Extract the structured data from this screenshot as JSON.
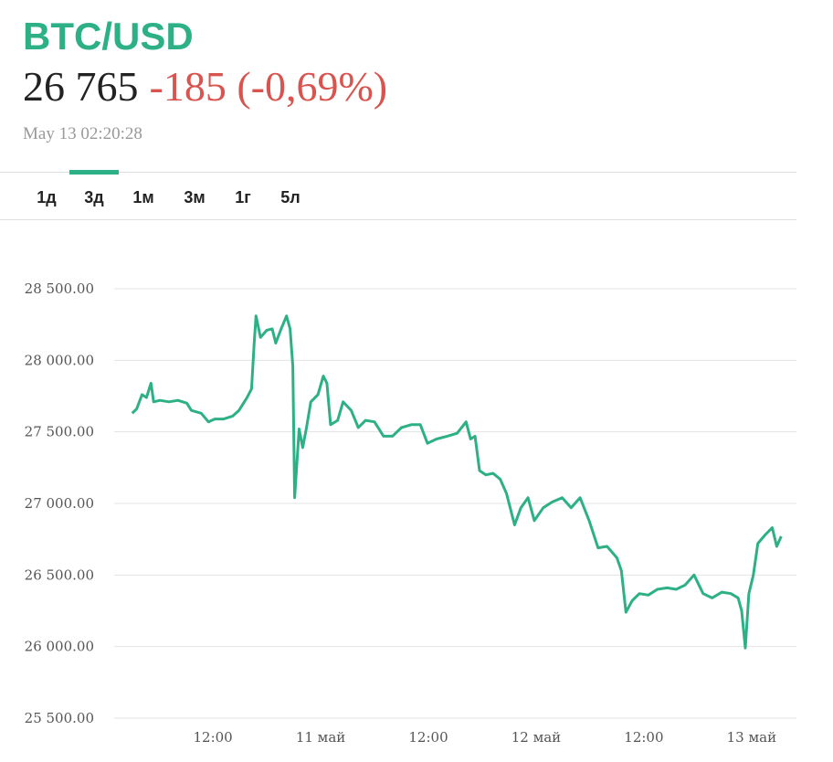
{
  "header": {
    "title": "BTC/USD",
    "price": "26 765",
    "change": "-185 (-0,69%)",
    "timestamp": "May 13 02:20:28"
  },
  "tabs": {
    "items": [
      "1д",
      "3д",
      "1м",
      "3м",
      "1г",
      "5л"
    ],
    "active": 1
  },
  "chart_data": {
    "type": "line",
    "color": "#2eb086",
    "grid": true,
    "x": [
      3.0,
      3.5,
      4.1,
      4.6,
      5.1,
      5.4,
      6.1,
      7.1,
      8.1,
      9.1,
      9.6,
      10.7,
      11.5,
      12.2,
      13.2,
      14.2,
      14.9,
      15.8,
      16.3,
      16.6,
      16.8,
      17.3,
      18.0,
      18.6,
      19.0,
      19.6,
      20.2,
      20.6,
      20.9,
      21.1,
      21.6,
      22.0,
      22.4,
      22.9,
      23.7,
      24.3,
      24.7,
      25.1,
      25.9,
      26.5,
      27.4,
      28.2,
      29.0,
      30.0,
      31.0,
      32.0,
      33.0,
      34.1,
      35.1,
      35.9,
      36.9,
      38.1,
      39.2,
      40.2,
      40.7,
      41.2,
      41.7,
      42.4,
      43.2,
      44.0,
      44.7,
      45.6,
      46.3,
      47.1,
      47.8,
      48.8,
      49.8,
      50.9,
      51.9,
      52.9,
      53.9,
      54.9,
      55.9,
      57.0,
      57.5,
      58.0,
      58.7,
      59.5,
      60.5,
      61.5,
      62.6,
      63.6,
      64.6,
      65.6,
      66.6,
      67.6,
      68.7,
      69.7,
      70.5,
      70.9,
      71.3,
      71.7,
      72.2,
      72.7,
      73.5,
      74.3,
      74.8,
      75.3
    ],
    "values": [
      27630,
      27660,
      27760,
      27740,
      27840,
      27710,
      27720,
      27710,
      27720,
      27700,
      27650,
      27630,
      27570,
      27590,
      27590,
      27610,
      27650,
      27740,
      27800,
      28120,
      28310,
      28160,
      28210,
      28220,
      28120,
      28220,
      28310,
      28220,
      27960,
      27040,
      27520,
      27390,
      27520,
      27710,
      27760,
      27890,
      27840,
      27550,
      27580,
      27710,
      27650,
      27530,
      27580,
      27570,
      27470,
      27470,
      27530,
      27550,
      27550,
      27420,
      27450,
      27470,
      27490,
      27570,
      27450,
      27470,
      27230,
      27200,
      27210,
      27170,
      27070,
      26850,
      26970,
      27040,
      26880,
      26970,
      27010,
      27040,
      26970,
      27040,
      26880,
      26690,
      26700,
      26620,
      26530,
      26240,
      26320,
      26370,
      26360,
      26400,
      26410,
      26400,
      26430,
      26500,
      26370,
      26340,
      26380,
      26370,
      26340,
      26250,
      25990,
      26370,
      26500,
      26720,
      26780,
      26830,
      26700,
      26770
    ],
    "xlim": [
      1,
      77
    ],
    "xticks": [
      {
        "value": 12,
        "label": "12:00"
      },
      {
        "value": 24,
        "label": "11 май"
      },
      {
        "value": 36,
        "label": "12:00"
      },
      {
        "value": 48,
        "label": "12 май"
      },
      {
        "value": 60,
        "label": "12:00"
      },
      {
        "value": 72,
        "label": "13 май"
      }
    ],
    "ylim": [
      25500,
      28500
    ],
    "yticks": [
      {
        "value": 25500,
        "label": "25 500.00"
      },
      {
        "value": 26000,
        "label": "26 000.00"
      },
      {
        "value": 26500,
        "label": "26 500.00"
      },
      {
        "value": 27000,
        "label": "27 000.00"
      },
      {
        "value": 27500,
        "label": "27 500.00"
      },
      {
        "value": 28000,
        "label": "28 000.00"
      },
      {
        "value": 28500,
        "label": "28 500.00"
      }
    ]
  }
}
